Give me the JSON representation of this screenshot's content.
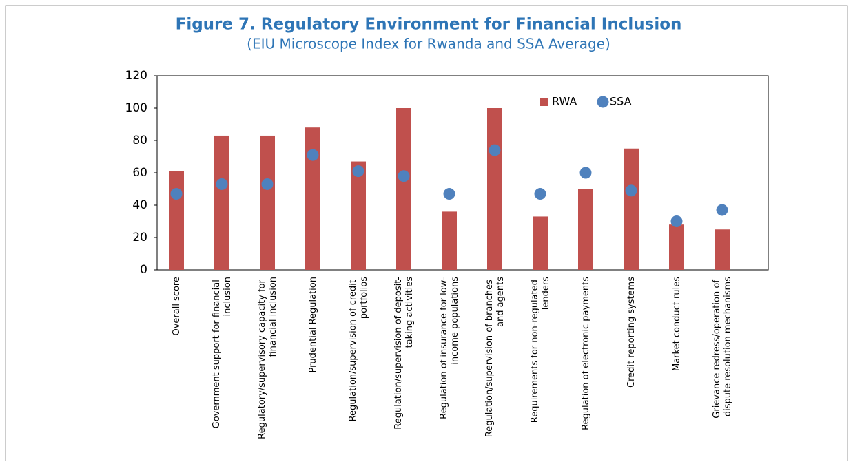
{
  "chart_data": {
    "type": "bar",
    "title": "Figure 7. Regulatory Environment for Financial Inclusion",
    "subtitle": "(EIU Microscope Index for Rwanda and SSA Average)",
    "categories": [
      "Overall score",
      "Government support for financial inclusion",
      "Regulatory/supervisory capacity for financial inclusion",
      "Prudential Regulation",
      "Regulation/supervision of credit portfolios",
      "Regulation/supervision of deposit-taking activities",
      "Regulation of insurance for low-income populations",
      "Regulation/supervision of branches and agents",
      "Requirements for non-regulated lenders",
      "Regulation of electronic payments",
      "Credit reporting systems",
      "Market conduct rules",
      "Grievance redress/operation of dispute resolution mechanisms"
    ],
    "series": [
      {
        "name": "RWA",
        "color": "#c0504d",
        "values": [
          61,
          83,
          83,
          88,
          67,
          100,
          36,
          100,
          33,
          50,
          75,
          28,
          25
        ]
      },
      {
        "name": "SSA",
        "color": "#4f81bd",
        "values": [
          47,
          53,
          53,
          71,
          61,
          58,
          47,
          74,
          47,
          60,
          49,
          30,
          37
        ]
      }
    ],
    "ylim": [
      0,
      120
    ],
    "yticks": [
      0,
      20,
      40,
      60,
      80,
      100,
      120
    ],
    "legend": "upper right"
  }
}
